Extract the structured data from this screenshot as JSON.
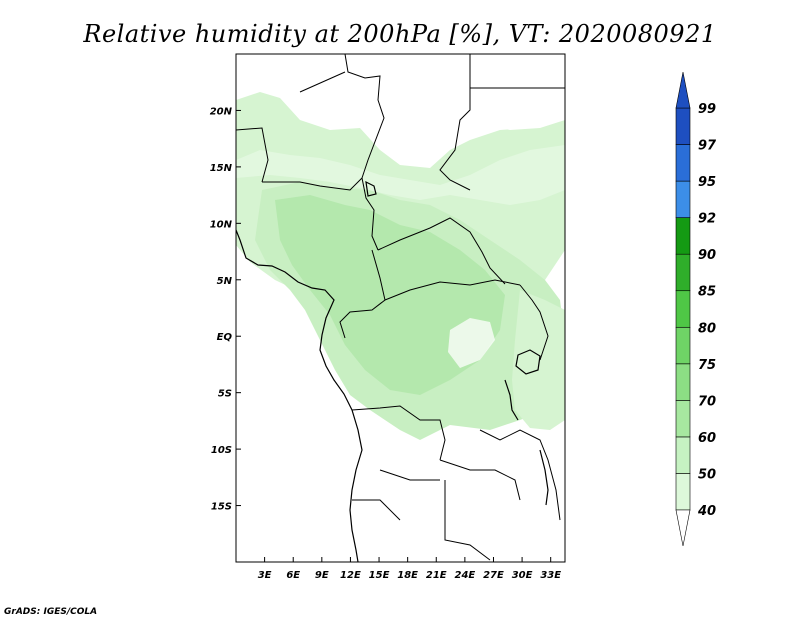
{
  "title": "Relative humidity at 200hPa [%], VT: 2020080921",
  "credit": "GrADS: IGES/COLA",
  "map": {
    "lon_range": [
      0,
      34.5
    ],
    "lat_range": [
      -20,
      25
    ],
    "x_tick_labels": [
      "3E",
      "6E",
      "9E",
      "12E",
      "15E",
      "18E",
      "21E",
      "24E",
      "27E",
      "30E",
      "33E"
    ],
    "x_tick_values": [
      3,
      6,
      9,
      12,
      15,
      18,
      21,
      24,
      27,
      30,
      33
    ],
    "y_tick_labels": [
      "20N",
      "15N",
      "10N",
      "5N",
      "EQ",
      "5S",
      "10S",
      "15S"
    ],
    "y_tick_values": [
      20,
      15,
      10,
      5,
      0,
      -5,
      -10,
      -15
    ]
  },
  "colorbar": {
    "levels": [
      "40",
      "50",
      "60",
      "70",
      "75",
      "80",
      "85",
      "90",
      "92",
      "95",
      "97",
      "99"
    ],
    "colors": [
      "#f0fff0",
      "#ddf8da",
      "#c6f2c2",
      "#a7e8a0",
      "#8cde84",
      "#6fd466",
      "#4fc746",
      "#2fae2a",
      "#149a13",
      "#3c8ee8",
      "#2a6ed8",
      "#1e4fc0"
    ]
  },
  "field": {
    "palette_note": "light green shades",
    "shades": [
      "#e6f9e4",
      "#cdf2c8",
      "#b2e9ab"
    ]
  }
}
